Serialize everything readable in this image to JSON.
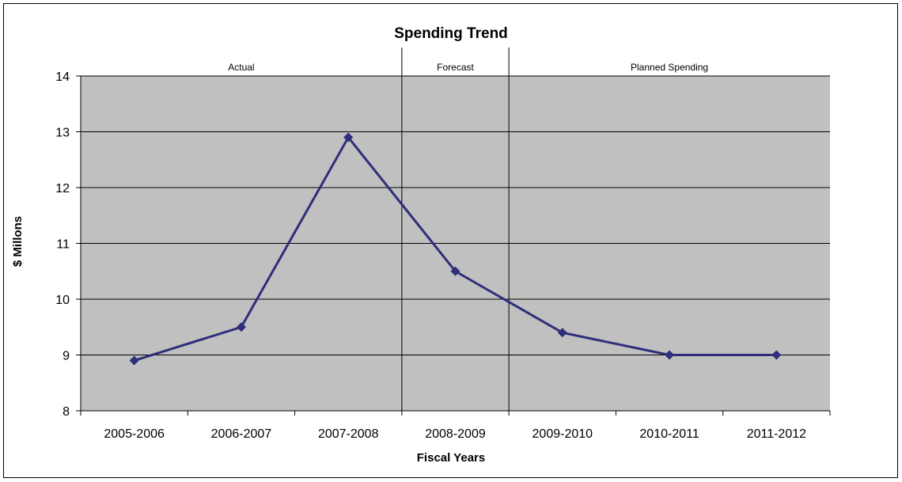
{
  "chart_data": {
    "type": "line",
    "title": "Spending Trend",
    "xlabel": "Fiscal Years",
    "ylabel": "$ Millons",
    "ylim": [
      8,
      14
    ],
    "yticks": [
      8,
      9,
      10,
      11,
      12,
      13,
      14
    ],
    "grid": true,
    "categories": [
      "2005-2006",
      "2006-2007",
      "2007-2008",
      "2008-2009",
      "2009-2010",
      "2010-2011",
      "2011-2012"
    ],
    "series": [
      {
        "values": [
          8.9,
          9.5,
          12.9,
          10.5,
          9.4,
          9.0,
          9.0
        ]
      }
    ],
    "regions": [
      {
        "label": "Actual",
        "from": "2005-2006",
        "to": "2007-2008"
      },
      {
        "label": "Forecast",
        "from": "2008-2009",
        "to": "2008-2009"
      },
      {
        "label": "Planned Spending",
        "from": "2009-2010",
        "to": "2011-2012"
      }
    ],
    "colors": {
      "plot_bg": "#c0c0c0",
      "line": "#2e2e7a",
      "grid": "#000000"
    }
  }
}
